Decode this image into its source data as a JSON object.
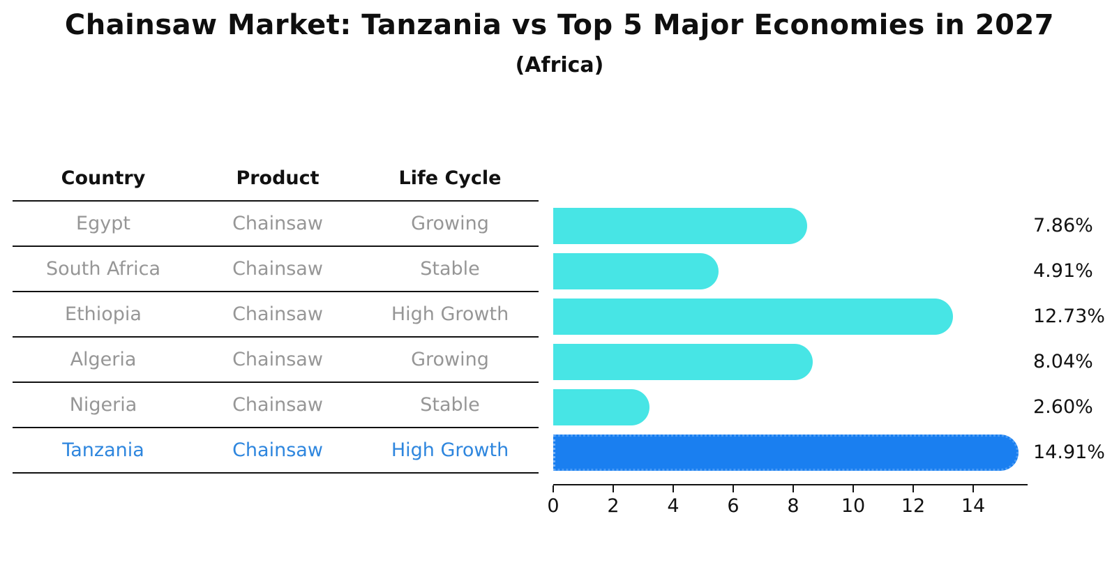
{
  "title": "Chainsaw Market: Tanzania vs Top 5 Major Economies in 2027",
  "subtitle": "(Africa)",
  "table": {
    "headers": [
      "Country",
      "Product",
      "Life Cycle"
    ],
    "rows": [
      {
        "country": "Egypt",
        "product": "Chainsaw",
        "life_cycle": "Growing"
      },
      {
        "country": "South Africa",
        "product": "Chainsaw",
        "life_cycle": "Stable"
      },
      {
        "country": "Ethiopia",
        "product": "Chainsaw",
        "life_cycle": "High Growth"
      },
      {
        "country": "Algeria",
        "product": "Chainsaw",
        "life_cycle": "Growing"
      },
      {
        "country": "Nigeria",
        "product": "Chainsaw",
        "life_cycle": "Stable"
      },
      {
        "country": "Tanzania",
        "product": "Chainsaw",
        "life_cycle": "High Growth"
      }
    ]
  },
  "chart_data": {
    "type": "bar",
    "orientation": "horizontal",
    "categories": [
      "Egypt",
      "South Africa",
      "Ethiopia",
      "Algeria",
      "Nigeria",
      "Tanzania"
    ],
    "values": [
      7.86,
      4.91,
      12.73,
      8.04,
      2.6,
      14.91
    ],
    "labels": [
      "7.86%",
      "4.91%",
      "12.73%",
      "8.04%",
      "2.60%",
      "14.91%"
    ],
    "x_ticks": [
      "0",
      "2",
      "4",
      "6",
      "8",
      "10",
      "12",
      "14"
    ],
    "xlim": [
      0,
      15.8
    ],
    "highlight_index": 5,
    "grid": false,
    "legend": "none",
    "colors": {
      "bar": "#47E5E5",
      "highlight_bar": "#1A7FF0",
      "highlight_border": "#4B9CF5",
      "highlight_text": "#2E86DE",
      "row_text": "#969696",
      "axis_text": "#111111"
    }
  }
}
